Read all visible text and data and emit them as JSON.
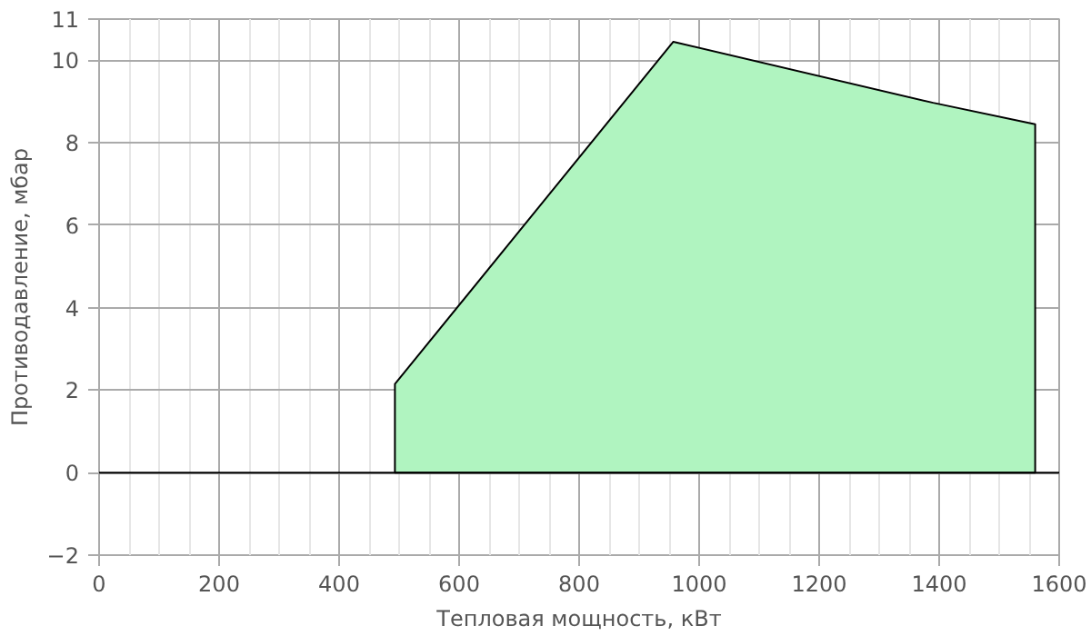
{
  "chart_data": {
    "type": "area",
    "xlabel": "Тепловая мощность, кВт",
    "ylabel": "Противодавление, мбар",
    "x": [
      493,
      493,
      957,
      1390,
      1560,
      1560
    ],
    "series": [
      {
        "color": "#b0f4c0",
        "values": [
          0,
          2.15,
          10.45,
          8.97,
          8.45,
          0
        ]
      }
    ],
    "xlim": [
      0,
      1600
    ],
    "xticks": [
      0,
      200,
      400,
      600,
      800,
      1000,
      1200,
      1400,
      1600
    ],
    "ylim": [
      -2,
      11
    ],
    "yticks": [
      -2,
      0,
      2,
      4,
      6,
      8,
      10,
      11
    ],
    "ref_lines": [
      {
        "axis": "y",
        "value": 0,
        "color": "#000000"
      }
    ],
    "grid": true
  }
}
